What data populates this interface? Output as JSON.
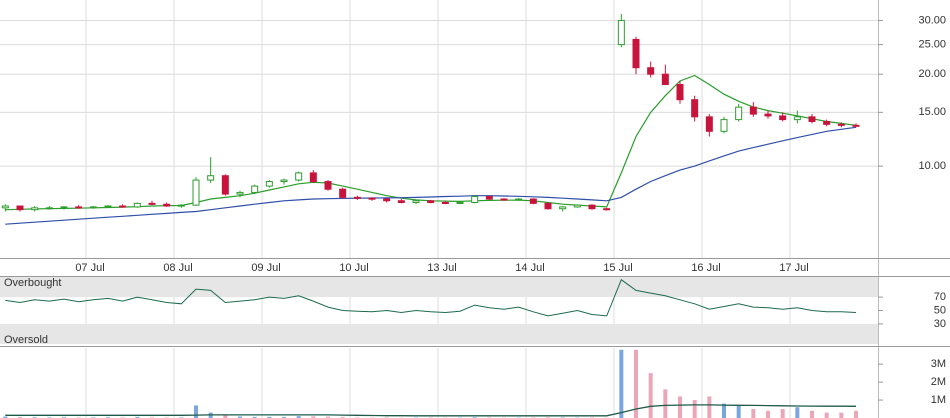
{
  "chart_data": [
    {
      "type": "candlestick",
      "categories": [
        null,
        null,
        null,
        null,
        null,
        null,
        "07 Jul",
        null,
        null,
        null,
        null,
        null,
        "08 Jul",
        null,
        null,
        null,
        null,
        null,
        "09 Jul",
        null,
        null,
        null,
        null,
        null,
        "10 Jul",
        null,
        null,
        null,
        null,
        null,
        "13 Jul",
        null,
        null,
        null,
        null,
        null,
        "14 Jul",
        null,
        null,
        null,
        null,
        null,
        "15 Jul",
        null,
        null,
        null,
        null,
        null,
        "16 Jul",
        null,
        null,
        null,
        null,
        null,
        "17 Jul",
        null,
        null,
        null,
        null
      ],
      "open": [
        7.3,
        7.4,
        7.2,
        7.3,
        7.3,
        7.35,
        7.3,
        7.35,
        7.4,
        7.35,
        7.55,
        7.5,
        7.4,
        7.45,
        9.0,
        9.3,
        8.1,
        8.2,
        8.6,
        8.9,
        9.0,
        9.5,
        8.9,
        8.4,
        7.9,
        7.85,
        7.8,
        7.7,
        7.6,
        7.7,
        7.6,
        7.55,
        7.6,
        7.95,
        7.8,
        7.75,
        7.8,
        7.55,
        7.25,
        7.35,
        7.45,
        7.25,
        25,
        26,
        21,
        20,
        18.5,
        16.5,
        14.5,
        13,
        14.2,
        15.6,
        14.8,
        14.6,
        14.2,
        14.5,
        14,
        13.7,
        13.6
      ],
      "high": [
        7.5,
        7.4,
        7.4,
        7.4,
        7.4,
        7.45,
        7.4,
        7.45,
        7.5,
        7.6,
        7.7,
        7.6,
        7.5,
        9.2,
        10.7,
        9.4,
        8.3,
        8.7,
        9.0,
        9.1,
        9.6,
        9.7,
        9.0,
        8.5,
        8.0,
        7.9,
        7.85,
        7.8,
        7.75,
        7.75,
        7.7,
        7.65,
        8.0,
        8.0,
        7.85,
        7.85,
        7.85,
        7.6,
        7.4,
        7.5,
        7.5,
        7.3,
        31.5,
        26.5,
        22,
        21.5,
        19,
        17,
        14.8,
        14.5,
        16,
        16.2,
        15.2,
        15,
        15.2,
        14.8,
        14.2,
        13.9,
        13.8
      ],
      "low": [
        7.1,
        7.1,
        7.1,
        7.2,
        7.2,
        7.25,
        7.25,
        7.3,
        7.3,
        7.3,
        7.45,
        7.35,
        7.3,
        7.4,
        8.8,
        8.0,
        7.9,
        8.1,
        8.5,
        8.7,
        8.9,
        8.8,
        8.3,
        7.8,
        7.75,
        7.7,
        7.6,
        7.55,
        7.5,
        7.55,
        7.5,
        7.5,
        7.55,
        7.75,
        7.7,
        7.7,
        7.5,
        7.2,
        7.1,
        7.3,
        7.2,
        7.15,
        24.5,
        20,
        19.5,
        18.5,
        16,
        14,
        12.5,
        12.8,
        14,
        14.5,
        14.3,
        14,
        13.8,
        13.8,
        13.5,
        13.4,
        13.4
      ],
      "close": [
        7.4,
        7.2,
        7.3,
        7.3,
        7.35,
        7.3,
        7.35,
        7.4,
        7.35,
        7.55,
        7.5,
        7.4,
        7.45,
        9.0,
        9.3,
        8.1,
        8.2,
        8.6,
        8.9,
        9.0,
        9.5,
        8.9,
        8.4,
        7.9,
        7.85,
        7.8,
        7.7,
        7.6,
        7.7,
        7.6,
        7.55,
        7.6,
        7.95,
        7.8,
        7.75,
        7.8,
        7.55,
        7.25,
        7.35,
        7.45,
        7.25,
        7.2,
        30,
        21,
        20,
        18.5,
        16.5,
        14.5,
        13,
        14.2,
        15.6,
        14.8,
        14.6,
        14.2,
        14.5,
        14,
        13.7,
        13.6,
        13.5
      ],
      "up_color": "#2e9e2e",
      "down_color": "#c8143c",
      "overlays": [
        {
          "color": "#2a9d2a",
          "values": [
            7.2,
            7.22,
            7.24,
            7.25,
            7.27,
            7.28,
            7.3,
            7.32,
            7.34,
            7.36,
            7.4,
            7.42,
            7.43,
            7.6,
            7.8,
            7.9,
            8.0,
            8.15,
            8.35,
            8.55,
            8.75,
            8.85,
            8.8,
            8.6,
            8.4,
            8.2,
            8.0,
            7.85,
            7.75,
            7.7,
            7.68,
            7.66,
            7.7,
            7.72,
            7.73,
            7.74,
            7.7,
            7.6,
            7.5,
            7.45,
            7.4,
            7.35,
            9.5,
            12.5,
            15,
            17,
            19,
            19.8,
            18.5,
            17.2,
            16.3,
            15.6,
            15.2,
            14.9,
            14.6,
            14.3,
            14.0,
            13.8,
            13.6
          ]
        },
        {
          "color": "#2f4fa8",
          "values": [
            6.45,
            6.5,
            6.55,
            6.6,
            6.65,
            6.7,
            6.75,
            6.8,
            6.85,
            6.9,
            6.95,
            7.0,
            7.05,
            7.1,
            7.2,
            7.3,
            7.4,
            7.5,
            7.6,
            7.7,
            7.75,
            7.8,
            7.82,
            7.84,
            7.85,
            7.86,
            7.87,
            7.88,
            7.9,
            7.92,
            7.95,
            7.97,
            8.0,
            8.0,
            7.98,
            7.96,
            7.93,
            7.9,
            7.85,
            7.8,
            7.75,
            7.7,
            7.9,
            8.4,
            8.9,
            9.3,
            9.7,
            10.0,
            10.4,
            10.8,
            11.2,
            11.5,
            11.8,
            12.1,
            12.4,
            12.7,
            13.0,
            13.2,
            13.4
          ]
        }
      ],
      "log_scale": true,
      "ylim": [
        5,
        35
      ],
      "yticks": [
        {
          "value": 10,
          "label": "10.00"
        },
        {
          "value": 15,
          "label": "15.00"
        },
        {
          "value": 20,
          "label": "20.00"
        },
        {
          "value": 25,
          "label": "25.00"
        },
        {
          "value": 30,
          "label": "30.00"
        }
      ],
      "grid": true
    },
    {
      "type": "line",
      "color": "#1d6b4c",
      "values": [
        65,
        62,
        66,
        64,
        67,
        63,
        66,
        68,
        64,
        70,
        66,
        62,
        60,
        82,
        80,
        62,
        64,
        66,
        70,
        68,
        72,
        64,
        55,
        50,
        49,
        48,
        50,
        47,
        50,
        48,
        47,
        49,
        58,
        54,
        52,
        55,
        48,
        42,
        46,
        50,
        44,
        42,
        96,
        80,
        76,
        72,
        66,
        60,
        52,
        56,
        60,
        55,
        54,
        52,
        54,
        50,
        48,
        48,
        47
      ],
      "ylim": [
        0,
        100
      ],
      "yticks": [
        70,
        50,
        30
      ],
      "bands": [
        {
          "label": "Overbought",
          "range": [
            70,
            100
          ]
        },
        {
          "label": "Oversold",
          "range": [
            0,
            30
          ]
        }
      ]
    },
    {
      "type": "bar",
      "up_color": "#7aa6dc",
      "down_color": "#eba7b8",
      "values": [
        80000,
        50000,
        40000,
        30000,
        40000,
        30000,
        30000,
        40000,
        30000,
        60000,
        40000,
        30000,
        30000,
        700000,
        300000,
        150000,
        80000,
        60000,
        60000,
        50000,
        100000,
        90000,
        70000,
        50000,
        30000,
        20000,
        30000,
        20000,
        20000,
        30000,
        20000,
        20000,
        40000,
        30000,
        20000,
        20000,
        30000,
        40000,
        30000,
        20000,
        30000,
        20000,
        3800000,
        3800000,
        2500000,
        1600000,
        1200000,
        1000000,
        1200000,
        800000,
        700000,
        500000,
        400000,
        500000,
        600000,
        400000,
        300000,
        300000,
        400000
      ],
      "average": {
        "color": "#1f5a4a",
        "values": [
          150000,
          150000,
          150000,
          150000,
          150000,
          150000,
          150000,
          150000,
          150000,
          150000,
          150000,
          150000,
          150000,
          160000,
          170000,
          170000,
          170000,
          170000,
          170000,
          170000,
          170000,
          170000,
          170000,
          160000,
          150000,
          140000,
          130000,
          130000,
          120000,
          120000,
          120000,
          120000,
          120000,
          120000,
          120000,
          120000,
          120000,
          120000,
          120000,
          120000,
          120000,
          120000,
          300000,
          500000,
          650000,
          700000,
          720000,
          730000,
          730000,
          720000,
          710000,
          700000,
          690000,
          680000,
          670000,
          665000,
          660000,
          655000,
          650000
        ]
      },
      "ylim": [
        0,
        3900000
      ],
      "yticks": [
        {
          "value": 1000000,
          "label": "1M"
        },
        {
          "value": 2000000,
          "label": "2M"
        },
        {
          "value": 3000000,
          "label": "3M"
        }
      ]
    }
  ]
}
